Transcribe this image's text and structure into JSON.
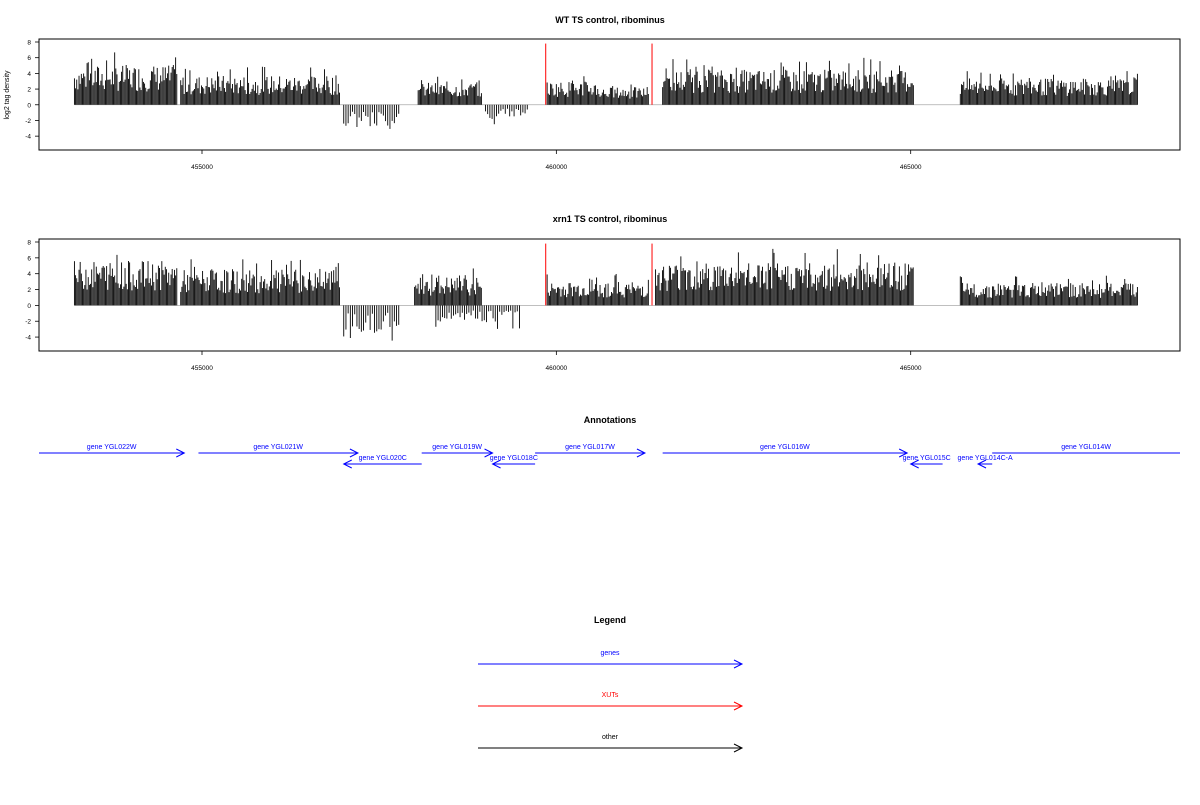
{
  "chart_data": [
    {
      "type": "bar",
      "title": "WT TS control, ribominus",
      "ylabel": "log2 tag density",
      "xlim": [
        452700,
        468800
      ],
      "ylim": [
        -5,
        8
      ],
      "yticks": [
        -4,
        -2,
        0,
        2,
        4,
        6,
        8
      ],
      "xticks": [
        455000,
        460000,
        465000
      ],
      "xtick_labels": [
        "455000",
        "460000",
        "465000"
      ],
      "positive_segments": [
        {
          "start": 453200,
          "end": 454650,
          "max": 6.8
        },
        {
          "start": 454700,
          "end": 456950,
          "max": 5.0
        },
        {
          "start": 458050,
          "end": 458950,
          "max": 3.8
        },
        {
          "start": 459870,
          "end": 460600,
          "max": 4.0
        },
        {
          "start": 460600,
          "end": 461300,
          "max": 3.0
        },
        {
          "start": 461500,
          "end": 465050,
          "max": 6.0
        },
        {
          "start": 465700,
          "end": 468200,
          "max": 4.5
        }
      ],
      "negative_segments": [
        {
          "start": 457000,
          "end": 457800,
          "min": -3.8
        },
        {
          "start": 459000,
          "end": 459600,
          "min": -2.5
        }
      ],
      "xut_marks": [
        459850,
        461350
      ],
      "xut_height": 7.8
    },
    {
      "type": "bar",
      "title": "xrn1 TS control, ribominus",
      "ylabel": "",
      "xlim": [
        452700,
        468800
      ],
      "ylim": [
        -5,
        8
      ],
      "yticks": [
        -4,
        -2,
        0,
        2,
        4,
        6,
        8
      ],
      "xticks": [
        455000,
        460000,
        465000
      ],
      "xtick_labels": [
        "455000",
        "460000",
        "465000"
      ],
      "positive_segments": [
        {
          "start": 453200,
          "end": 454650,
          "max": 7.5
        },
        {
          "start": 454700,
          "end": 456950,
          "max": 6.0
        },
        {
          "start": 458000,
          "end": 458950,
          "max": 4.8
        },
        {
          "start": 459870,
          "end": 461300,
          "max": 4.0
        },
        {
          "start": 461400,
          "end": 465050,
          "max": 7.2
        },
        {
          "start": 465700,
          "end": 468200,
          "max": 3.8
        }
      ],
      "negative_segments": [
        {
          "start": 457000,
          "end": 457800,
          "min": -4.6
        },
        {
          "start": 458300,
          "end": 459500,
          "min": -3.2
        }
      ],
      "xut_marks": [
        459850,
        461350
      ],
      "xut_height": 7.8
    }
  ],
  "annotations": {
    "title": "Annotations",
    "genes": [
      {
        "label": "gene YGL022W",
        "start": 452700,
        "end": 454750,
        "strand": "+",
        "row": 0
      },
      {
        "label": "gene YGL021W",
        "start": 454950,
        "end": 457200,
        "strand": "+",
        "row": 0
      },
      {
        "label": "gene YGL020C",
        "start": 457000,
        "end": 458100,
        "strand": "-",
        "row": 1
      },
      {
        "label": "gene YGL019W",
        "start": 458100,
        "end": 459100,
        "strand": "+",
        "row": 0
      },
      {
        "label": "gene YGL018C",
        "start": 459100,
        "end": 459700,
        "strand": "-",
        "row": 1
      },
      {
        "label": "gene YGL017W",
        "start": 459700,
        "end": 461250,
        "strand": "+",
        "row": 0
      },
      {
        "label": "gene YGL016W",
        "start": 461500,
        "end": 464950,
        "strand": "+",
        "row": 0
      },
      {
        "label": "gene YGL015C",
        "start": 465000,
        "end": 465450,
        "strand": "-",
        "row": 1
      },
      {
        "label": "gene YGL014C-A",
        "start": 465950,
        "end": 466150,
        "strand": "-",
        "row": 1
      },
      {
        "label": "gene YGL014W",
        "start": 466150,
        "end": 468800,
        "strand": "+",
        "row": 0
      }
    ]
  },
  "legend": {
    "title": "Legend",
    "items": [
      {
        "label": "genes",
        "color": "#0000ff"
      },
      {
        "label": "XUTs",
        "color": "#ff0000"
      },
      {
        "label": "other",
        "color": "#000000"
      }
    ]
  },
  "colors": {
    "signal": "#000000",
    "xut": "#ff0000",
    "gene": "#0000ff",
    "zero_line": "#aaaaaa"
  }
}
